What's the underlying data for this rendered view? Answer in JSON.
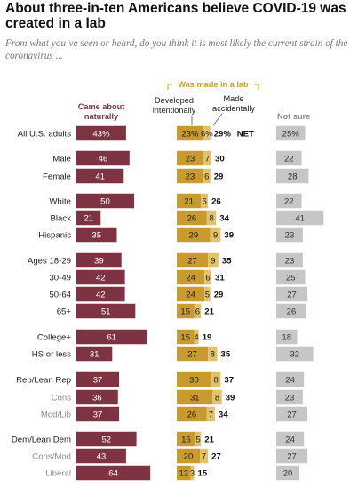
{
  "title": "About three-in-ten Americans believe COVID-19 was created in a lab",
  "subtitle": "From what you’ve seen or heard, do you think it is most likely the current strain of the coronavirus ...",
  "colors": {
    "naturally": "#7d3341",
    "intentionally": "#c99a2e",
    "accidentally": "#e2c36b",
    "not_sure": "#c6c6c6",
    "header_gold": "#c9a227",
    "muted_label": "#8a8a8a"
  },
  "headers": {
    "naturally": "Came about naturally",
    "lab_group": "Was made in a lab",
    "intentionally": "Developed intentionally",
    "accidentally": "Made accidentally",
    "not_sure": "Not sure",
    "net": "NET"
  },
  "chart_data": {
    "type": "bar",
    "title": "About three-in-ten Americans believe COVID-19 was created in a lab",
    "series_names": [
      "Came about naturally",
      "Developed intentionally",
      "Made accidentally",
      "Was made in a lab NET",
      "Not sure"
    ],
    "rows": [
      {
        "label": "All U.S. adults",
        "naturally": 43,
        "intentionally": 23,
        "accidentally": 6,
        "net": 29,
        "not_sure": 25,
        "pct": true
      },
      {
        "label": "Male",
        "naturally": 46,
        "intentionally": 23,
        "accidentally": 7,
        "net": 30,
        "not_sure": 22
      },
      {
        "label": "Female",
        "naturally": 41,
        "intentionally": 23,
        "accidentally": 6,
        "net": 29,
        "not_sure": 28
      },
      {
        "label": "White",
        "naturally": 50,
        "intentionally": 21,
        "accidentally": 6,
        "net": 26,
        "not_sure": 22
      },
      {
        "label": "Black",
        "naturally": 21,
        "intentionally": 26,
        "accidentally": 8,
        "net": 34,
        "not_sure": 41
      },
      {
        "label": "Hispanic",
        "naturally": 35,
        "intentionally": 29,
        "accidentally": 9,
        "net": 39,
        "not_sure": 23
      },
      {
        "label": "Ages 18-29",
        "naturally": 39,
        "intentionally": 27,
        "accidentally": 9,
        "net": 35,
        "not_sure": 23
      },
      {
        "label": "30-49",
        "naturally": 42,
        "intentionally": 24,
        "accidentally": 6,
        "net": 31,
        "not_sure": 25
      },
      {
        "label": "50-64",
        "naturally": 42,
        "intentionally": 24,
        "accidentally": 5,
        "net": 29,
        "not_sure": 27
      },
      {
        "label": "65+",
        "naturally": 51,
        "intentionally": 15,
        "accidentally": 6,
        "net": 21,
        "not_sure": 26
      },
      {
        "label": "College+",
        "naturally": 61,
        "intentionally": 15,
        "accidentally": 4,
        "net": 19,
        "not_sure": 18
      },
      {
        "label": "HS or less",
        "naturally": 31,
        "intentionally": 27,
        "accidentally": 8,
        "net": 35,
        "not_sure": 32
      },
      {
        "label": "Rep/Lean Rep",
        "naturally": 37,
        "intentionally": 30,
        "accidentally": 8,
        "net": 37,
        "not_sure": 24
      },
      {
        "label": "Cons",
        "naturally": 36,
        "intentionally": 31,
        "accidentally": 8,
        "net": 39,
        "not_sure": 23,
        "sub": true
      },
      {
        "label": "Mod/Lib",
        "naturally": 37,
        "intentionally": 26,
        "accidentally": 7,
        "net": 34,
        "not_sure": 27,
        "sub": true
      },
      {
        "label": "Dem/Lean Dem",
        "naturally": 52,
        "intentionally": 16,
        "accidentally": 5,
        "net": 21,
        "not_sure": 24
      },
      {
        "label": "Cons/Mod",
        "naturally": 43,
        "intentionally": 20,
        "accidentally": 7,
        "net": 27,
        "not_sure": 27,
        "sub": true
      },
      {
        "label": "Liberal",
        "naturally": 64,
        "intentionally": 12,
        "accidentally": 3,
        "net": 15,
        "not_sure": 20,
        "sub": true
      }
    ]
  }
}
